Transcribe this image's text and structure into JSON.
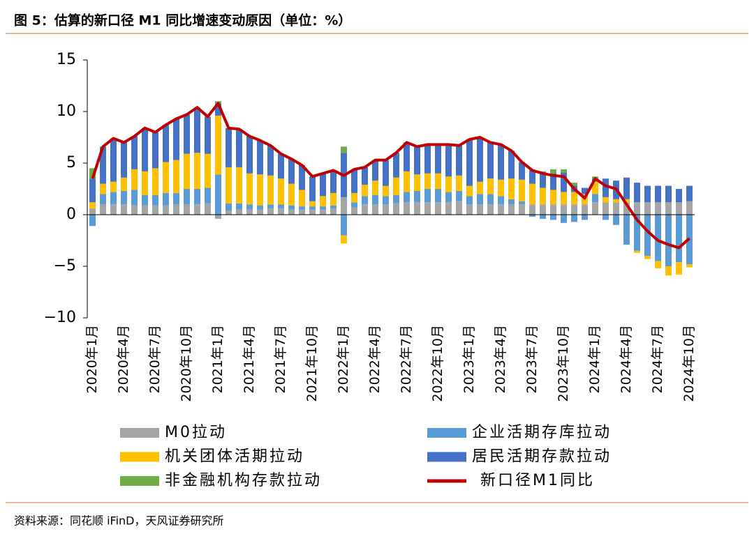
{
  "header": {
    "title": "图 5：估算的新口径 M1 同比增速变动原因（单位：%）"
  },
  "chart_data": {
    "type": "bar",
    "categories": [
      "2020年1月",
      null,
      null,
      "2020年4月",
      null,
      null,
      "2020年7月",
      null,
      null,
      "2020年10月",
      null,
      null,
      "2021年1月",
      null,
      null,
      "2021年4月",
      null,
      null,
      "2021年7月",
      null,
      null,
      "2021年10月",
      null,
      null,
      "2022年1月",
      null,
      null,
      "2022年4月",
      null,
      null,
      "2022年7月",
      null,
      null,
      "2022年10月",
      null,
      null,
      "2023年1月",
      null,
      null,
      "2023年4月",
      null,
      null,
      "2023年7月",
      null,
      null,
      "2023年10月",
      null,
      null,
      "2024年1月",
      null,
      null,
      "2024年4月",
      null,
      null,
      "2024年7月",
      null,
      null,
      "2024年10月"
    ],
    "series": [
      {
        "name": "M0拉动",
        "color": "#a5a5a5",
        "values": [
          0.6,
          1.0,
          1.0,
          1.0,
          0.9,
          0.9,
          0.9,
          0.9,
          1.0,
          1.0,
          1.0,
          1.1,
          -0.4,
          0.4,
          0.5,
          0.5,
          0.5,
          0.6,
          0.6,
          0.5,
          0.5,
          0.5,
          0.5,
          0.6,
          1.7,
          0.7,
          1.0,
          1.0,
          1.0,
          1.1,
          1.2,
          1.2,
          1.2,
          1.2,
          1.2,
          1.3,
          1.0,
          1.0,
          1.0,
          1.0,
          1.0,
          1.0,
          1.0,
          1.0,
          1.0,
          1.0,
          1.0,
          1.0,
          1.2,
          1.2,
          1.2,
          1.2,
          1.2,
          1.2,
          1.2,
          1.2,
          1.2,
          1.3
        ]
      },
      {
        "name": "企业活期存库拉动",
        "color": "#5b9bd5",
        "values": [
          -1.1,
          1.0,
          1.2,
          1.3,
          1.5,
          1.0,
          1.0,
          1.2,
          1.1,
          1.5,
          1.5,
          1.5,
          3.9,
          0.7,
          0.6,
          0.5,
          0.4,
          0.4,
          0.4,
          0.4,
          0.3,
          0.3,
          0.3,
          0.3,
          -2.0,
          0.5,
          0.8,
          0.9,
          0.8,
          0.8,
          1.0,
          1.1,
          1.3,
          1.3,
          1.0,
          1.0,
          0.8,
          1.0,
          1.0,
          0.8,
          0.5,
          0.3,
          -0.2,
          -0.4,
          -0.5,
          -0.8,
          -0.7,
          -0.5,
          0.8,
          -0.5,
          -1.0,
          -2.9,
          -3.5,
          -4.0,
          -4.5,
          -5.0,
          -4.6,
          -4.8
        ]
      },
      {
        "name": "机关团体活期拉动",
        "color": "#ffc000",
        "values": [
          0.6,
          1.0,
          1.0,
          1.3,
          2.0,
          2.3,
          2.6,
          3.0,
          3.2,
          3.4,
          3.5,
          3.3,
          5.7,
          3.5,
          3.5,
          3.0,
          3.0,
          2.8,
          2.5,
          2.1,
          1.6,
          0.5,
          1.0,
          1.2,
          -0.8,
          0.9,
          1.1,
          1.4,
          1.0,
          1.7,
          2.0,
          1.6,
          1.5,
          1.5,
          1.5,
          1.5,
          1.0,
          1.2,
          1.5,
          1.6,
          2.0,
          2.1,
          2.0,
          1.6,
          1.4,
          1.2,
          1.2,
          1.0,
          1.2,
          0.5,
          0.3,
          0.3,
          -0.2,
          -0.3,
          -0.7,
          -0.9,
          -1.2,
          -0.3
        ]
      },
      {
        "name": "居民活期存款拉动",
        "color": "#4472c4",
        "values": [
          2.3,
          3.6,
          4.2,
          3.4,
          3.2,
          4.2,
          3.5,
          3.6,
          4.0,
          3.8,
          4.4,
          3.6,
          1.2,
          3.8,
          3.7,
          3.6,
          3.3,
          2.9,
          2.4,
          2.4,
          2.4,
          2.4,
          2.2,
          2.2,
          4.3,
          2.3,
          1.7,
          2.0,
          2.5,
          2.4,
          2.8,
          2.7,
          2.8,
          2.8,
          3.1,
          2.9,
          4.5,
          4.3,
          3.5,
          3.4,
          2.7,
          1.7,
          1.3,
          1.4,
          1.6,
          1.9,
          0.6,
          0.6,
          0.3,
          1.8,
          1.8,
          2.1,
          1.9,
          1.6,
          1.6,
          1.6,
          1.3,
          1.5
        ]
      },
      {
        "name": "非金融机构存款拉动",
        "color": "#70ad47",
        "values": [
          1.0,
          0,
          0,
          0,
          0,
          0,
          0,
          0,
          0,
          0,
          0,
          0,
          0.2,
          0,
          0,
          0,
          0,
          0,
          0,
          0,
          0,
          0,
          0,
          0,
          0.6,
          0,
          0,
          0,
          0,
          0,
          0,
          0,
          0,
          0,
          0,
          0,
          0,
          0,
          0,
          0,
          0,
          0,
          0,
          0.2,
          0.4,
          0.3,
          0.3,
          0,
          0.2,
          0,
          0,
          0,
          0,
          0,
          0,
          0,
          0,
          0
        ]
      },
      {
        "name": "新口径M1同比",
        "color": "#c00000",
        "type": "line",
        "values": [
          3.5,
          6.6,
          7.4,
          7.0,
          7.6,
          8.4,
          8.0,
          8.7,
          9.3,
          9.7,
          10.4,
          9.5,
          10.8,
          8.4,
          8.3,
          7.6,
          7.2,
          6.7,
          5.9,
          5.4,
          4.8,
          3.7,
          4.0,
          4.3,
          3.8,
          4.4,
          4.6,
          5.3,
          5.3,
          6.0,
          7.0,
          6.6,
          6.8,
          6.8,
          6.8,
          6.7,
          7.3,
          7.5,
          7.0,
          6.8,
          6.2,
          5.1,
          4.3,
          4.0,
          3.8,
          3.7,
          2.5,
          1.6,
          3.5,
          2.8,
          2.5,
          1.0,
          -0.5,
          -1.6,
          -2.5,
          -2.9,
          -3.2,
          -2.3
        ]
      }
    ],
    "ylim": [
      -10,
      15
    ],
    "yticks": [
      {
        "value": -10,
        "label": "−10"
      },
      {
        "value": -5,
        "label": "−5"
      },
      0,
      5,
      10,
      15
    ]
  },
  "footer": {
    "source": "资料来源：同花顺 iFinD，天风证券研究所"
  }
}
